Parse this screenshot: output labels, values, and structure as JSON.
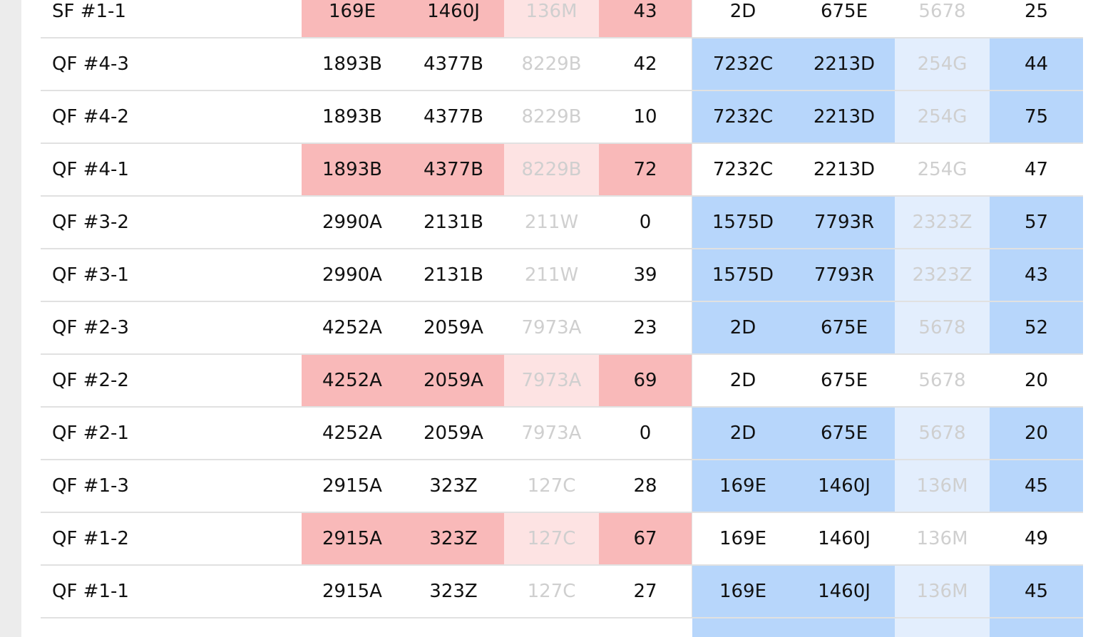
{
  "rows": [
    {
      "label": "SF #1-1",
      "a": [
        "169E",
        "1460J",
        "136M",
        "43"
      ],
      "b": [
        "2D",
        "675E",
        "5678",
        "25"
      ],
      "highlight": "a"
    },
    {
      "label": "QF #4-3",
      "a": [
        "1893B",
        "4377B",
        "8229B",
        "42"
      ],
      "b": [
        "7232C",
        "2213D",
        "254G",
        "44"
      ],
      "highlight": "b"
    },
    {
      "label": "QF #4-2",
      "a": [
        "1893B",
        "4377B",
        "8229B",
        "10"
      ],
      "b": [
        "7232C",
        "2213D",
        "254G",
        "75"
      ],
      "highlight": "b"
    },
    {
      "label": "QF #4-1",
      "a": [
        "1893B",
        "4377B",
        "8229B",
        "72"
      ],
      "b": [
        "7232C",
        "2213D",
        "254G",
        "47"
      ],
      "highlight": "a"
    },
    {
      "label": "QF #3-2",
      "a": [
        "2990A",
        "2131B",
        "211W",
        "0"
      ],
      "b": [
        "1575D",
        "7793R",
        "2323Z",
        "57"
      ],
      "highlight": "b"
    },
    {
      "label": "QF #3-1",
      "a": [
        "2990A",
        "2131B",
        "211W",
        "39"
      ],
      "b": [
        "1575D",
        "7793R",
        "2323Z",
        "43"
      ],
      "highlight": "b"
    },
    {
      "label": "QF #2-3",
      "a": [
        "4252A",
        "2059A",
        "7973A",
        "23"
      ],
      "b": [
        "2D",
        "675E",
        "5678",
        "52"
      ],
      "highlight": "b"
    },
    {
      "label": "QF #2-2",
      "a": [
        "4252A",
        "2059A",
        "7973A",
        "69"
      ],
      "b": [
        "2D",
        "675E",
        "5678",
        "20"
      ],
      "highlight": "a"
    },
    {
      "label": "QF #2-1",
      "a": [
        "4252A",
        "2059A",
        "7973A",
        "0"
      ],
      "b": [
        "2D",
        "675E",
        "5678",
        "20"
      ],
      "highlight": "b"
    },
    {
      "label": "QF #1-3",
      "a": [
        "2915A",
        "323Z",
        "127C",
        "28"
      ],
      "b": [
        "169E",
        "1460J",
        "136M",
        "45"
      ],
      "highlight": "b"
    },
    {
      "label": "QF #1-2",
      "a": [
        "2915A",
        "323Z",
        "127C",
        "67"
      ],
      "b": [
        "169E",
        "1460J",
        "136M",
        "49"
      ],
      "highlight": "a"
    },
    {
      "label": "QF #1-1",
      "a": [
        "2915A",
        "323Z",
        "127C",
        "27"
      ],
      "b": [
        "169E",
        "1460J",
        "136M",
        "45"
      ],
      "highlight": "b"
    }
  ],
  "colors": {
    "team_a_highlight": "#f9b9b9",
    "team_a_highlight_light": "#fde3e3",
    "team_b_highlight": "#b7d6fb",
    "team_b_highlight_light": "#e3eefd",
    "muted_text": "#cfcfcf"
  }
}
